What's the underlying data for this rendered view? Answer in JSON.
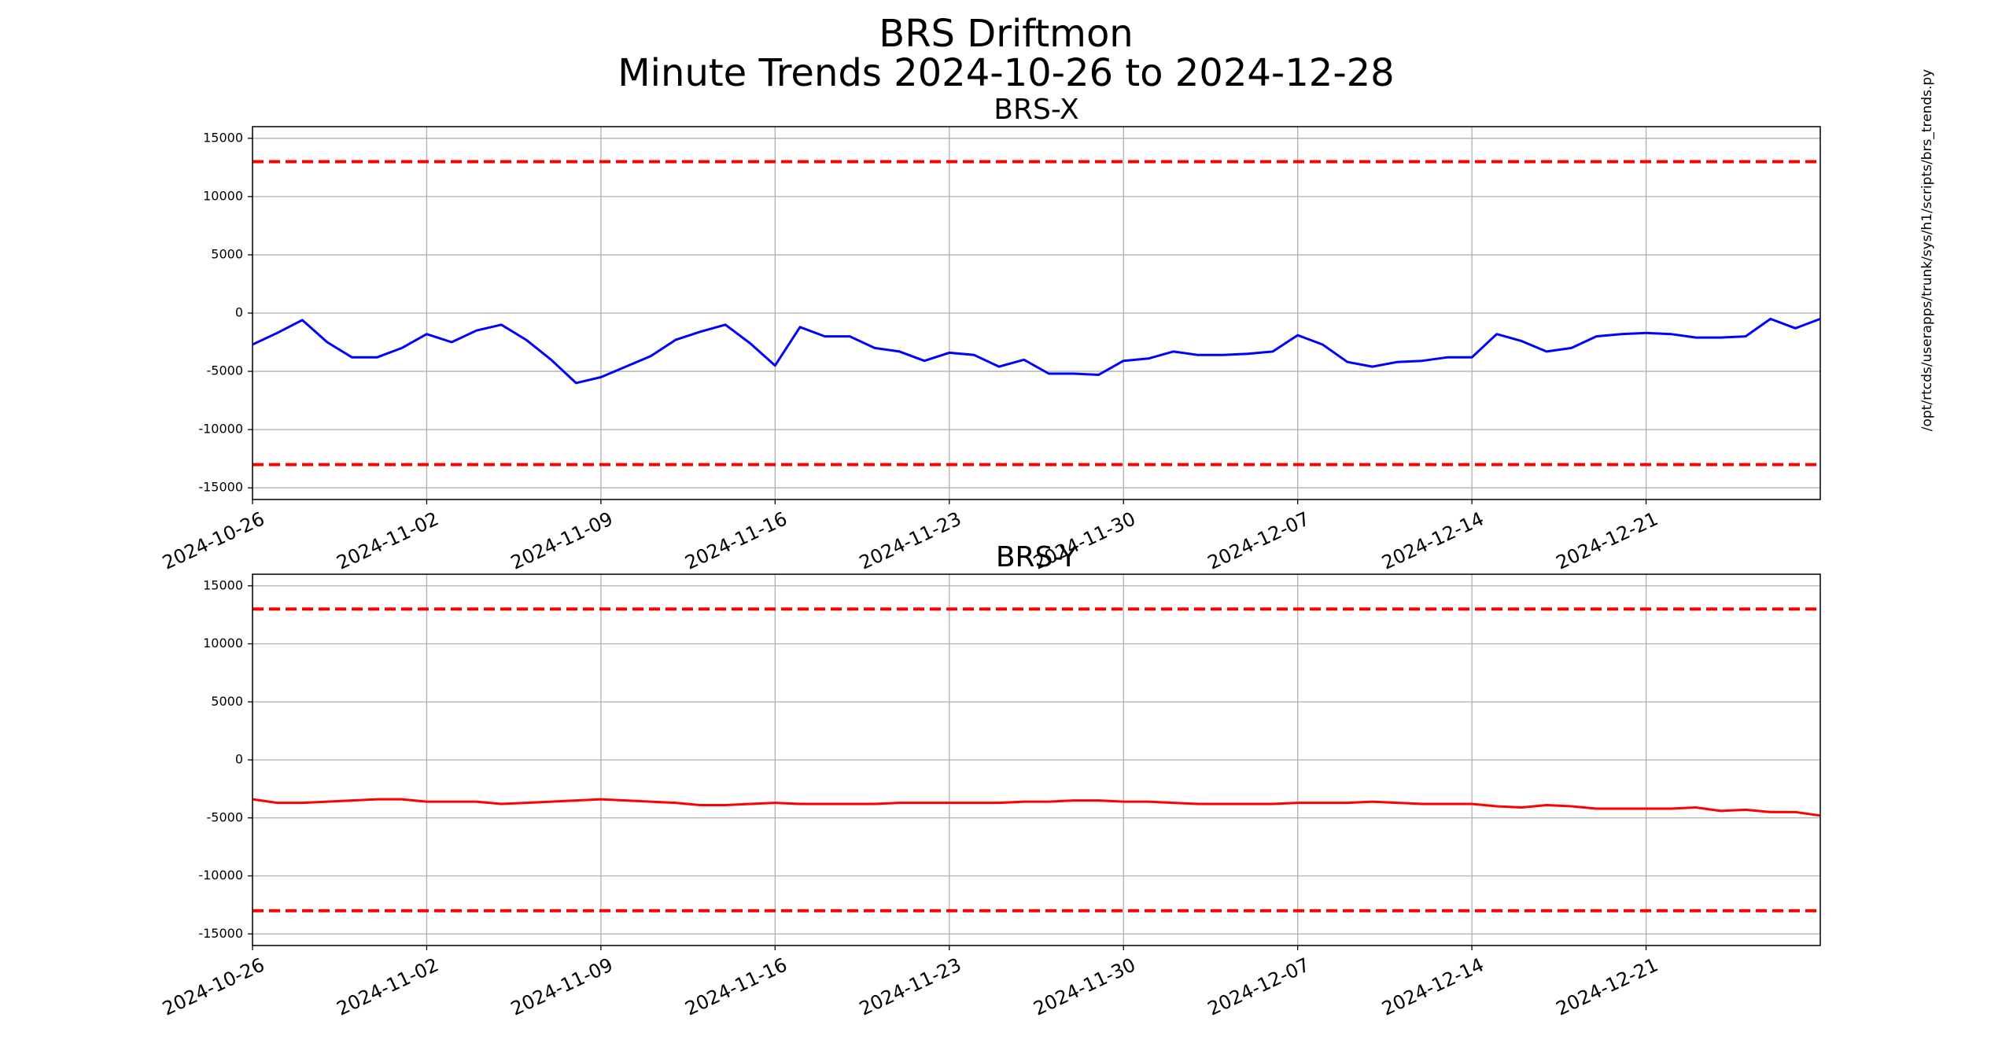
{
  "figure": {
    "title": "BRS Driftmon",
    "subtitle": "Minute Trends 2024-10-26  to 2024-12-28",
    "note": "/opt/rtcds/userapps/trunk/sys/h1/scripts/brs_trends.py"
  },
  "chart_data": [
    {
      "type": "line",
      "title": "BRS-X",
      "x": [
        "2024-10-26",
        "2024-10-27",
        "2024-10-28",
        "2024-10-29",
        "2024-10-30",
        "2024-10-31",
        "2024-11-01",
        "2024-11-02",
        "2024-11-03",
        "2024-11-04",
        "2024-11-05",
        "2024-11-06",
        "2024-11-07",
        "2024-11-08",
        "2024-11-09",
        "2024-11-10",
        "2024-11-11",
        "2024-11-12",
        "2024-11-13",
        "2024-11-14",
        "2024-11-15",
        "2024-11-16",
        "2024-11-17",
        "2024-11-18",
        "2024-11-19",
        "2024-11-20",
        "2024-11-21",
        "2024-11-22",
        "2024-11-23",
        "2024-11-24",
        "2024-11-25",
        "2024-11-26",
        "2024-11-27",
        "2024-11-28",
        "2024-11-29",
        "2024-11-30",
        "2024-12-01",
        "2024-12-02",
        "2024-12-03",
        "2024-12-04",
        "2024-12-05",
        "2024-12-06",
        "2024-12-07",
        "2024-12-08",
        "2024-12-09",
        "2024-12-10",
        "2024-12-11",
        "2024-12-12",
        "2024-12-13",
        "2024-12-14",
        "2024-12-15",
        "2024-12-16",
        "2024-12-17",
        "2024-12-18",
        "2024-12-19",
        "2024-12-20",
        "2024-12-21",
        "2024-12-22",
        "2024-12-23",
        "2024-12-24",
        "2024-12-25",
        "2024-12-26",
        "2024-12-27",
        "2024-12-28"
      ],
      "series": [
        {
          "color": "#0000ff",
          "values": [
            -2700,
            -1700,
            -600,
            -2500,
            -3800,
            -3800,
            -3000,
            -1800,
            -2500,
            -1500,
            -1000,
            -2300,
            -4000,
            -6000,
            -5500,
            -4600,
            -3700,
            -2300,
            -1600,
            -1000,
            -2600,
            -4500,
            -1200,
            -2000,
            -2000,
            -3000,
            -3300,
            -4100,
            -3400,
            -3600,
            -4600,
            -4000,
            -5200,
            -5200,
            -5300,
            -4100,
            -3900,
            -3300,
            -3600,
            -3600,
            -3500,
            -3300,
            -1900,
            -2700,
            -4200,
            -4600,
            -4200,
            -4100,
            -3800,
            -3800,
            -1800,
            -2400,
            -3300,
            -3000,
            -2000,
            -1800,
            -1700,
            -1800,
            -2100,
            -2100,
            -2000,
            -500,
            -1300,
            -500
          ]
        }
      ],
      "thresholds": [
        13000,
        -13000
      ],
      "threshold_color": "#ff0000",
      "xlim": [
        "2024-10-26",
        "2024-12-28"
      ],
      "xticks": [
        "2024-10-26",
        "2024-11-02",
        "2024-11-09",
        "2024-11-16",
        "2024-11-23",
        "2024-11-30",
        "2024-12-07",
        "2024-12-14",
        "2024-12-21"
      ],
      "ylim": [
        -16000,
        16000
      ],
      "yticks": [
        -15000,
        -10000,
        -5000,
        0,
        5000,
        10000,
        15000
      ],
      "grid": true
    },
    {
      "type": "line",
      "title": "BRS-Y",
      "x": [
        "2024-10-26",
        "2024-10-27",
        "2024-10-28",
        "2024-10-29",
        "2024-10-30",
        "2024-10-31",
        "2024-11-01",
        "2024-11-02",
        "2024-11-03",
        "2024-11-04",
        "2024-11-05",
        "2024-11-06",
        "2024-11-07",
        "2024-11-08",
        "2024-11-09",
        "2024-11-10",
        "2024-11-11",
        "2024-11-12",
        "2024-11-13",
        "2024-11-14",
        "2024-11-15",
        "2024-11-16",
        "2024-11-17",
        "2024-11-18",
        "2024-11-19",
        "2024-11-20",
        "2024-11-21",
        "2024-11-22",
        "2024-11-23",
        "2024-11-24",
        "2024-11-25",
        "2024-11-26",
        "2024-11-27",
        "2024-11-28",
        "2024-11-29",
        "2024-11-30",
        "2024-12-01",
        "2024-12-02",
        "2024-12-03",
        "2024-12-04",
        "2024-12-05",
        "2024-12-06",
        "2024-12-07",
        "2024-12-08",
        "2024-12-09",
        "2024-12-10",
        "2024-12-11",
        "2024-12-12",
        "2024-12-13",
        "2024-12-14",
        "2024-12-15",
        "2024-12-16",
        "2024-12-17",
        "2024-12-18",
        "2024-12-19",
        "2024-12-20",
        "2024-12-21",
        "2024-12-22",
        "2024-12-23",
        "2024-12-24",
        "2024-12-25",
        "2024-12-26",
        "2024-12-27",
        "2024-12-28"
      ],
      "series": [
        {
          "color": "#ff0000",
          "values": [
            -3400,
            -3700,
            -3700,
            -3600,
            -3500,
            -3400,
            -3400,
            -3600,
            -3600,
            -3600,
            -3800,
            -3700,
            -3600,
            -3500,
            -3400,
            -3500,
            -3600,
            -3700,
            -3900,
            -3900,
            -3800,
            -3700,
            -3800,
            -3800,
            -3800,
            -3800,
            -3700,
            -3700,
            -3700,
            -3700,
            -3700,
            -3600,
            -3600,
            -3500,
            -3500,
            -3600,
            -3600,
            -3700,
            -3800,
            -3800,
            -3800,
            -3800,
            -3700,
            -3700,
            -3700,
            -3600,
            -3700,
            -3800,
            -3800,
            -3800,
            -4000,
            -4100,
            -3900,
            -4000,
            -4200,
            -4200,
            -4200,
            -4200,
            -4100,
            -4400,
            -4300,
            -4500,
            -4500,
            -4800
          ]
        }
      ],
      "thresholds": [
        13000,
        -13000
      ],
      "threshold_color": "#ff0000",
      "xlim": [
        "2024-10-26",
        "2024-12-28"
      ],
      "xticks": [
        "2024-10-26",
        "2024-11-02",
        "2024-11-09",
        "2024-11-16",
        "2024-11-23",
        "2024-11-30",
        "2024-12-07",
        "2024-12-14",
        "2024-12-21"
      ],
      "ylim": [
        -16000,
        16000
      ],
      "yticks": [
        -15000,
        -10000,
        -5000,
        0,
        5000,
        10000,
        15000
      ],
      "grid": true
    }
  ]
}
